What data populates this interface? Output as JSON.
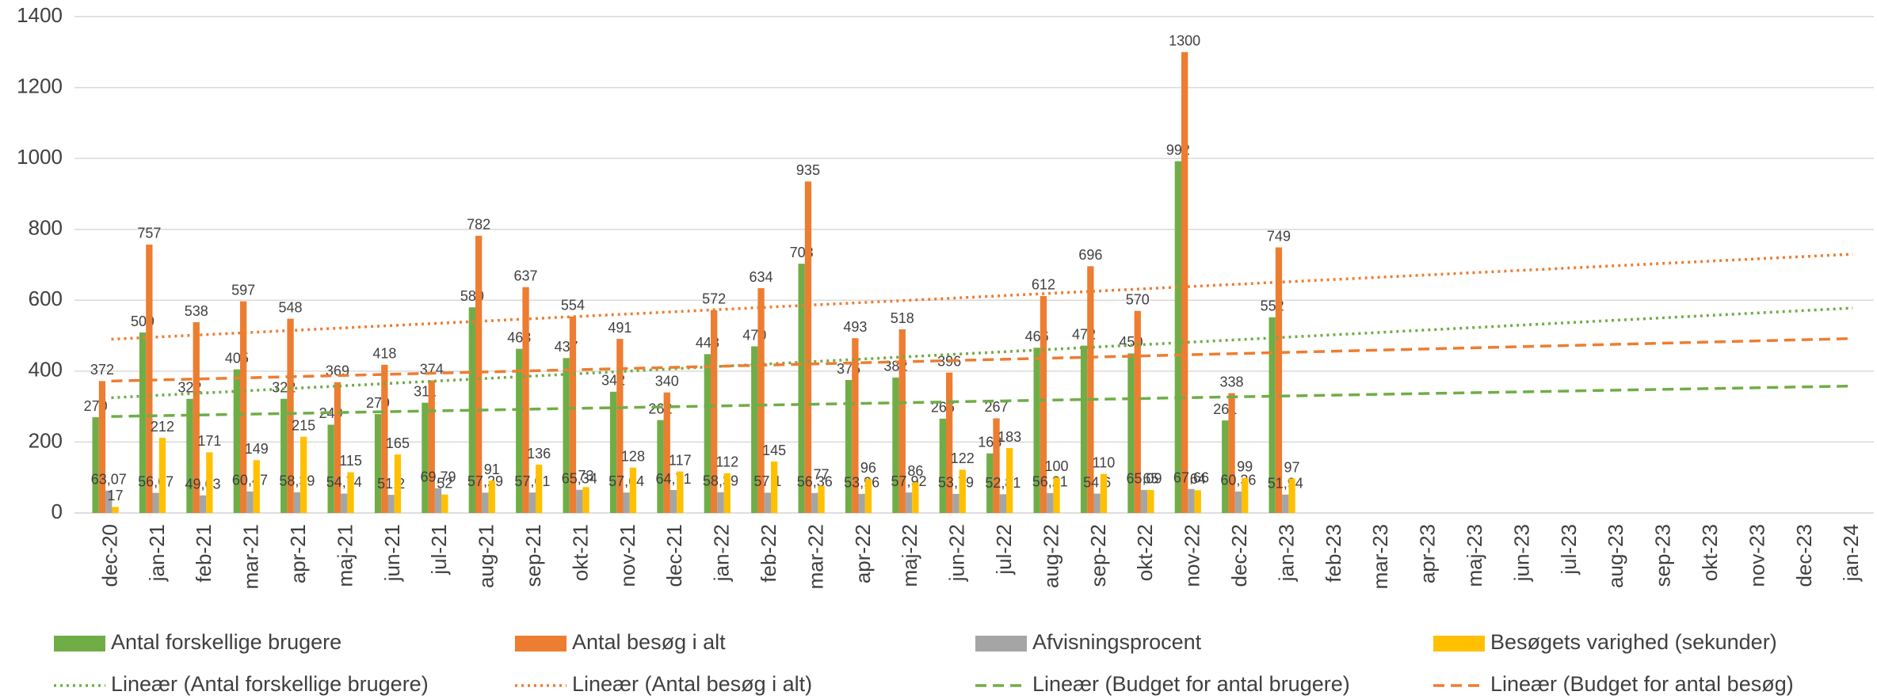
{
  "chart_data": {
    "type": "bar",
    "categories": [
      "dec-20",
      "jan-21",
      "feb-21",
      "mar-21",
      "apr-21",
      "maj-21",
      "jun-21",
      "jul-21",
      "aug-21",
      "sep-21",
      "okt-21",
      "nov-21",
      "dec-21",
      "jan-22",
      "feb-22",
      "mar-22",
      "apr-22",
      "maj-22",
      "jun-22",
      "jul-22",
      "aug-22",
      "sep-22",
      "okt-22",
      "nov-22",
      "dec-22",
      "jan-23",
      "feb-23",
      "mar-23",
      "apr-23",
      "maj-23",
      "jun-23",
      "jul-23",
      "aug-23",
      "sep-23",
      "okt-23",
      "nov-23",
      "dec-23",
      "jan-24"
    ],
    "series": [
      {
        "name": "Antal forskellige brugere",
        "color": "#70ad47",
        "values": [
          270,
          509,
          322,
          405,
          322,
          249,
          279,
          311,
          580,
          463,
          437,
          342,
          262,
          448,
          470,
          703,
          375,
          382,
          266,
          168,
          466,
          472,
          450,
          992,
          261,
          552,
          null,
          null,
          null,
          null,
          null,
          null,
          null,
          null,
          null,
          null,
          null,
          null
        ]
      },
      {
        "name": "Antal besøg i alt",
        "color": "#ed7d31",
        "values": [
          372,
          757,
          538,
          597,
          548,
          369,
          418,
          374,
          782,
          637,
          554,
          491,
          340,
          572,
          634,
          935,
          493,
          518,
          396,
          267,
          612,
          696,
          570,
          1300,
          338,
          749,
          null,
          null,
          null,
          null,
          null,
          null,
          null,
          null,
          null,
          null,
          null,
          null
        ]
      },
      {
        "name": "Afvisningsprocent",
        "color": "#a5a5a5",
        "values": [
          63.07,
          56.67,
          49.63,
          60.47,
          58.39,
          54.74,
          51.2,
          69.79,
          57.29,
          57.61,
          65.34,
          57.64,
          64.71,
          58.39,
          57.1,
          56.36,
          53.96,
          57.92,
          53.79,
          52.81,
          56.21,
          54.6,
          65.09,
          67.66,
          60.36,
          51.94,
          null,
          null,
          null,
          null,
          null,
          null,
          null,
          null,
          null,
          null,
          null,
          null
        ],
        "value_labels": [
          "63,07",
          "56,67",
          "49,63",
          "60,47",
          "58,39",
          "54,74",
          "51,2",
          "69,79",
          "57,29",
          "57,61",
          "65,34",
          "57,64",
          "64,71",
          "58,39",
          "57,1",
          "56,36",
          "53,96",
          "57,92",
          "53,79",
          "52,81",
          "56,21",
          "54,6",
          "65,09",
          "67,66",
          "60,36",
          "51,94",
          null,
          null,
          null,
          null,
          null,
          null,
          null,
          null,
          null,
          null,
          null,
          null
        ]
      },
      {
        "name": "Besøgets varighed (sekunder)",
        "color": "#ffc000",
        "values": [
          17,
          212,
          171,
          149,
          215,
          115,
          165,
          52,
          91,
          136,
          73,
          128,
          117,
          112,
          145,
          77,
          96,
          86,
          122,
          183,
          100,
          110,
          65,
          64,
          99,
          97,
          null,
          null,
          null,
          null,
          null,
          null,
          null,
          null,
          null,
          null,
          null,
          null
        ]
      }
    ],
    "trendlines": [
      {
        "name": "Lineær (Antal forskellige brugere)",
        "color": "#70ad47",
        "style": "dotted",
        "x": [
          "dec-20",
          "jan-24"
        ],
        "values": [
          325,
          578
        ]
      },
      {
        "name": "Lineær (Antal besøg i alt)",
        "color": "#ed7d31",
        "style": "dotted",
        "x": [
          "dec-20",
          "jan-24"
        ],
        "values": [
          490,
          730
        ]
      },
      {
        "name": "Lineær (Budget for antal brugere)",
        "color": "#70ad47",
        "style": "dashed",
        "x": [
          "dec-20",
          "jan-24"
        ],
        "values": [
          272,
          358
        ]
      },
      {
        "name": "Lineær (Budget for antal besøg)",
        "color": "#ed7d31",
        "style": "dashed",
        "x": [
          "dec-20",
          "jan-24"
        ],
        "values": [
          372,
          492
        ]
      }
    ],
    "ylim": [
      0,
      1400
    ],
    "yticks": [
      0,
      200,
      400,
      600,
      800,
      1000,
      1200,
      1400
    ],
    "grid": true
  }
}
